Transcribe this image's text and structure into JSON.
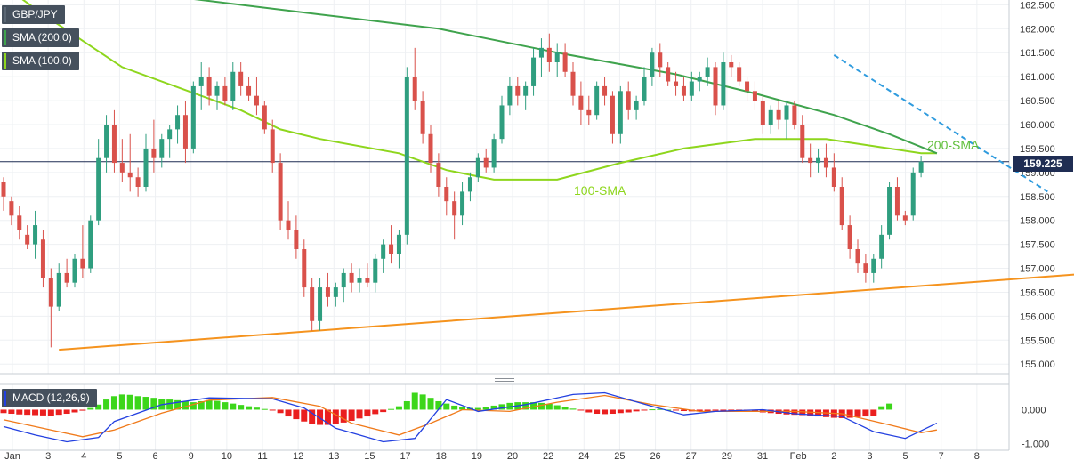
{
  "legend": {
    "symbol": "GBP/JPY",
    "sma200": "SMA (200,0)",
    "sma100": "SMA (100,0)",
    "macd": "MACD (12,26,9)"
  },
  "annotations": {
    "sma200": "200-SMA",
    "sma100": "100-SMA"
  },
  "price_tag": "159.225",
  "colors": {
    "bull": "#2f9e7f",
    "bear": "#d9514b",
    "sma200": "#3fa34d",
    "sma100": "#8ed61d",
    "support": "#f5931e",
    "resistance": "#2f9bde",
    "macd": "#2340e0",
    "signal": "#f07a1a",
    "hist_pos": "#3cd61a",
    "hist_neg": "#ea1f1f",
    "price_line": "#1f2d53"
  },
  "chart_data": {
    "type": "candlestick",
    "y_ticks": [
      "162.500",
      "162.000",
      "161.500",
      "161.000",
      "160.500",
      "160.000",
      "159.500",
      "159.000",
      "158.500",
      "158.000",
      "157.500",
      "157.000",
      "156.500",
      "156.000",
      "155.500",
      "155.000"
    ],
    "x_ticks": [
      "Jan",
      "3",
      "4",
      "5",
      "6",
      "9",
      "10",
      "11",
      "12",
      "13",
      "15",
      "17",
      "18",
      "19",
      "20",
      "22",
      "24",
      "25",
      "26",
      "27",
      "29",
      "31",
      "Feb",
      "2",
      "3",
      "5",
      "7",
      "8"
    ],
    "ylim": [
      154.8,
      162.6
    ],
    "candles": [
      {
        "o": 158.8,
        "h": 158.9,
        "l": 158.2,
        "c": 158.5
      },
      {
        "o": 158.4,
        "h": 158.5,
        "l": 157.9,
        "c": 158.1
      },
      {
        "o": 158.1,
        "h": 158.3,
        "l": 157.6,
        "c": 157.8
      },
      {
        "o": 157.7,
        "h": 157.9,
        "l": 157.4,
        "c": 157.5
      },
      {
        "o": 157.5,
        "h": 158.2,
        "l": 157.2,
        "c": 157.9
      },
      {
        "o": 157.6,
        "h": 157.8,
        "l": 156.6,
        "c": 156.8
      },
      {
        "o": 156.8,
        "h": 157.0,
        "l": 155.35,
        "c": 156.2
      },
      {
        "o": 156.2,
        "h": 157.1,
        "l": 156.1,
        "c": 156.9
      },
      {
        "o": 156.9,
        "h": 157.2,
        "l": 156.6,
        "c": 156.7
      },
      {
        "o": 156.7,
        "h": 157.3,
        "l": 156.6,
        "c": 157.2
      },
      {
        "o": 157.2,
        "h": 157.9,
        "l": 156.8,
        "c": 157.0
      },
      {
        "o": 157.0,
        "h": 158.1,
        "l": 156.9,
        "c": 158.0
      },
      {
        "o": 158.0,
        "h": 159.7,
        "l": 157.9,
        "c": 159.3
      },
      {
        "o": 159.3,
        "h": 160.2,
        "l": 159.0,
        "c": 160.0
      },
      {
        "o": 160.0,
        "h": 160.3,
        "l": 159.0,
        "c": 159.2
      },
      {
        "o": 159.2,
        "h": 159.7,
        "l": 158.8,
        "c": 159.0
      },
      {
        "o": 159.0,
        "h": 159.8,
        "l": 158.6,
        "c": 158.9
      },
      {
        "o": 158.9,
        "h": 159.1,
        "l": 158.5,
        "c": 158.7
      },
      {
        "o": 158.7,
        "h": 159.8,
        "l": 158.6,
        "c": 159.5
      },
      {
        "o": 159.5,
        "h": 160.1,
        "l": 159.0,
        "c": 159.3
      },
      {
        "o": 159.3,
        "h": 159.8,
        "l": 159.1,
        "c": 159.7
      },
      {
        "o": 159.7,
        "h": 160.0,
        "l": 159.3,
        "c": 159.9
      },
      {
        "o": 159.9,
        "h": 160.4,
        "l": 159.6,
        "c": 160.2
      },
      {
        "o": 160.2,
        "h": 160.5,
        "l": 159.2,
        "c": 159.5
      },
      {
        "o": 159.5,
        "h": 160.9,
        "l": 159.4,
        "c": 160.8
      },
      {
        "o": 160.8,
        "h": 161.3,
        "l": 160.3,
        "c": 161.0
      },
      {
        "o": 161.0,
        "h": 161.2,
        "l": 160.4,
        "c": 160.6
      },
      {
        "o": 160.6,
        "h": 160.9,
        "l": 160.3,
        "c": 160.8
      },
      {
        "o": 160.8,
        "h": 161.0,
        "l": 160.4,
        "c": 160.5
      },
      {
        "o": 160.5,
        "h": 161.3,
        "l": 160.3,
        "c": 161.1
      },
      {
        "o": 161.1,
        "h": 161.3,
        "l": 160.6,
        "c": 160.8
      },
      {
        "o": 160.8,
        "h": 161.0,
        "l": 160.5,
        "c": 160.6
      },
      {
        "o": 160.6,
        "h": 161.0,
        "l": 160.2,
        "c": 160.4
      },
      {
        "o": 160.4,
        "h": 160.5,
        "l": 159.8,
        "c": 159.9
      },
      {
        "o": 159.9,
        "h": 160.1,
        "l": 159.0,
        "c": 159.2
      },
      {
        "o": 159.2,
        "h": 159.4,
        "l": 157.8,
        "c": 158.0
      },
      {
        "o": 158.0,
        "h": 158.4,
        "l": 157.6,
        "c": 157.8
      },
      {
        "o": 157.8,
        "h": 158.1,
        "l": 157.2,
        "c": 157.4
      },
      {
        "o": 157.4,
        "h": 157.6,
        "l": 156.4,
        "c": 156.6
      },
      {
        "o": 156.6,
        "h": 156.8,
        "l": 155.7,
        "c": 155.9
      },
      {
        "o": 155.9,
        "h": 156.8,
        "l": 155.7,
        "c": 156.6
      },
      {
        "o": 156.6,
        "h": 156.9,
        "l": 156.2,
        "c": 156.4
      },
      {
        "o": 156.4,
        "h": 156.7,
        "l": 156.2,
        "c": 156.6
      },
      {
        "o": 156.6,
        "h": 157.0,
        "l": 156.3,
        "c": 156.9
      },
      {
        "o": 156.9,
        "h": 157.1,
        "l": 156.5,
        "c": 156.7
      },
      {
        "o": 156.7,
        "h": 157.0,
        "l": 156.5,
        "c": 156.8
      },
      {
        "o": 156.8,
        "h": 157.1,
        "l": 156.6,
        "c": 156.7
      },
      {
        "o": 156.7,
        "h": 157.3,
        "l": 156.5,
        "c": 157.2
      },
      {
        "o": 157.2,
        "h": 157.6,
        "l": 156.9,
        "c": 157.5
      },
      {
        "o": 157.5,
        "h": 157.9,
        "l": 157.1,
        "c": 157.3
      },
      {
        "o": 157.3,
        "h": 157.8,
        "l": 157.0,
        "c": 157.7
      },
      {
        "o": 157.7,
        "h": 161.2,
        "l": 157.5,
        "c": 161.0
      },
      {
        "o": 161.0,
        "h": 161.6,
        "l": 160.3,
        "c": 160.5
      },
      {
        "o": 160.5,
        "h": 160.7,
        "l": 159.6,
        "c": 159.8
      },
      {
        "o": 159.8,
        "h": 160.0,
        "l": 159.0,
        "c": 159.2
      },
      {
        "o": 159.2,
        "h": 159.4,
        "l": 158.5,
        "c": 158.7
      },
      {
        "o": 158.7,
        "h": 158.9,
        "l": 158.1,
        "c": 158.4
      },
      {
        "o": 158.4,
        "h": 158.6,
        "l": 157.6,
        "c": 158.1
      },
      {
        "o": 158.1,
        "h": 158.8,
        "l": 157.9,
        "c": 158.6
      },
      {
        "o": 158.6,
        "h": 159.0,
        "l": 158.4,
        "c": 158.9
      },
      {
        "o": 158.9,
        "h": 159.4,
        "l": 158.8,
        "c": 159.3
      },
      {
        "o": 159.3,
        "h": 159.5,
        "l": 159.0,
        "c": 159.1
      },
      {
        "o": 159.1,
        "h": 159.8,
        "l": 159.0,
        "c": 159.7
      },
      {
        "o": 159.7,
        "h": 160.6,
        "l": 159.6,
        "c": 160.4
      },
      {
        "o": 160.4,
        "h": 161.0,
        "l": 160.2,
        "c": 160.8
      },
      {
        "o": 160.8,
        "h": 161.0,
        "l": 160.4,
        "c": 160.6
      },
      {
        "o": 160.6,
        "h": 160.9,
        "l": 160.3,
        "c": 160.8
      },
      {
        "o": 160.8,
        "h": 161.6,
        "l": 160.6,
        "c": 161.4
      },
      {
        "o": 161.4,
        "h": 161.8,
        "l": 161.0,
        "c": 161.6
      },
      {
        "o": 161.6,
        "h": 161.9,
        "l": 161.1,
        "c": 161.3
      },
      {
        "o": 161.3,
        "h": 161.7,
        "l": 161.0,
        "c": 161.5
      },
      {
        "o": 161.5,
        "h": 161.7,
        "l": 161.0,
        "c": 161.1
      },
      {
        "o": 161.1,
        "h": 161.3,
        "l": 160.4,
        "c": 160.6
      },
      {
        "o": 160.6,
        "h": 160.9,
        "l": 160.0,
        "c": 160.3
      },
      {
        "o": 160.3,
        "h": 160.6,
        "l": 160.0,
        "c": 160.2
      },
      {
        "o": 160.2,
        "h": 160.9,
        "l": 160.1,
        "c": 160.8
      },
      {
        "o": 160.8,
        "h": 161.0,
        "l": 160.4,
        "c": 160.6
      },
      {
        "o": 160.6,
        "h": 160.7,
        "l": 159.6,
        "c": 159.8
      },
      {
        "o": 159.8,
        "h": 160.8,
        "l": 159.6,
        "c": 160.7
      },
      {
        "o": 160.7,
        "h": 160.9,
        "l": 160.1,
        "c": 160.3
      },
      {
        "o": 160.3,
        "h": 160.6,
        "l": 160.1,
        "c": 160.5
      },
      {
        "o": 160.5,
        "h": 161.2,
        "l": 160.4,
        "c": 161.0
      },
      {
        "o": 161.0,
        "h": 161.6,
        "l": 160.8,
        "c": 161.5
      },
      {
        "o": 161.5,
        "h": 161.7,
        "l": 161.0,
        "c": 161.2
      },
      {
        "o": 161.2,
        "h": 161.3,
        "l": 160.8,
        "c": 160.9
      },
      {
        "o": 160.9,
        "h": 161.1,
        "l": 160.6,
        "c": 160.8
      },
      {
        "o": 160.8,
        "h": 161.0,
        "l": 160.5,
        "c": 160.6
      },
      {
        "o": 160.6,
        "h": 161.1,
        "l": 160.5,
        "c": 160.9
      },
      {
        "o": 160.9,
        "h": 161.1,
        "l": 160.7,
        "c": 161.0
      },
      {
        "o": 161.0,
        "h": 161.4,
        "l": 160.8,
        "c": 161.2
      },
      {
        "o": 161.2,
        "h": 161.3,
        "l": 160.2,
        "c": 160.4
      },
      {
        "o": 160.4,
        "h": 161.5,
        "l": 160.3,
        "c": 161.3
      },
      {
        "o": 161.3,
        "h": 161.45,
        "l": 161.0,
        "c": 161.2
      },
      {
        "o": 161.2,
        "h": 161.3,
        "l": 160.8,
        "c": 160.9
      },
      {
        "o": 160.9,
        "h": 161.0,
        "l": 160.5,
        "c": 160.7
      },
      {
        "o": 160.7,
        "h": 160.9,
        "l": 160.3,
        "c": 160.5
      },
      {
        "o": 160.5,
        "h": 160.6,
        "l": 159.8,
        "c": 160.0
      },
      {
        "o": 160.0,
        "h": 160.4,
        "l": 159.8,
        "c": 160.3
      },
      {
        "o": 160.3,
        "h": 160.5,
        "l": 159.9,
        "c": 160.1
      },
      {
        "o": 160.1,
        "h": 160.5,
        "l": 159.7,
        "c": 160.4
      },
      {
        "o": 160.4,
        "h": 160.5,
        "l": 159.9,
        "c": 160.0
      },
      {
        "o": 160.0,
        "h": 160.2,
        "l": 159.2,
        "c": 159.3
      },
      {
        "o": 159.3,
        "h": 159.6,
        "l": 158.9,
        "c": 159.2
      },
      {
        "o": 159.2,
        "h": 159.5,
        "l": 159.0,
        "c": 159.3
      },
      {
        "o": 159.3,
        "h": 159.6,
        "l": 158.9,
        "c": 159.1
      },
      {
        "o": 159.1,
        "h": 159.4,
        "l": 158.6,
        "c": 158.7
      },
      {
        "o": 158.7,
        "h": 158.9,
        "l": 157.8,
        "c": 157.9
      },
      {
        "o": 157.9,
        "h": 158.1,
        "l": 157.2,
        "c": 157.4
      },
      {
        "o": 157.4,
        "h": 157.6,
        "l": 156.9,
        "c": 157.1
      },
      {
        "o": 157.1,
        "h": 157.3,
        "l": 156.7,
        "c": 156.9
      },
      {
        "o": 156.9,
        "h": 157.3,
        "l": 156.7,
        "c": 157.2
      },
      {
        "o": 157.2,
        "h": 157.9,
        "l": 157.0,
        "c": 157.7
      },
      {
        "o": 157.7,
        "h": 158.8,
        "l": 157.6,
        "c": 158.7
      },
      {
        "o": 158.7,
        "h": 158.9,
        "l": 158.0,
        "c": 158.1
      },
      {
        "o": 158.1,
        "h": 158.2,
        "l": 157.9,
        "c": 158.0
      },
      {
        "o": 158.1,
        "h": 159.1,
        "l": 158.0,
        "c": 159.0
      },
      {
        "o": 159.0,
        "h": 159.35,
        "l": 158.9,
        "c": 159.225
      }
    ],
    "sma100": [
      [
        0,
        162.9
      ],
      [
        5,
        162.3
      ],
      [
        15,
        161.2
      ],
      [
        25,
        160.6
      ],
      [
        30,
        160.3
      ],
      [
        35,
        159.9
      ],
      [
        40,
        159.7
      ],
      [
        50,
        159.4
      ],
      [
        56,
        159.05
      ],
      [
        62,
        158.85
      ],
      [
        70,
        158.85
      ],
      [
        78,
        159.2
      ],
      [
        86,
        159.5
      ],
      [
        95,
        159.7
      ],
      [
        104,
        159.7
      ],
      [
        110,
        159.55
      ],
      [
        116,
        159.4
      ],
      [
        118,
        159.4
      ]
    ],
    "sma200": [
      [
        8,
        163.0
      ],
      [
        20,
        162.7
      ],
      [
        40,
        162.3
      ],
      [
        55,
        162.0
      ],
      [
        70,
        161.5
      ],
      [
        85,
        161.05
      ],
      [
        95,
        160.65
      ],
      [
        105,
        160.2
      ],
      [
        112,
        159.8
      ],
      [
        118,
        159.4
      ]
    ],
    "support": [
      [
        7,
        155.3
      ],
      [
        138,
        156.9
      ]
    ],
    "resistance": [
      [
        105,
        161.45
      ],
      [
        132,
        158.6
      ]
    ],
    "macd_hist": [
      -0.1,
      -0.12,
      -0.14,
      -0.15,
      -0.16,
      -0.17,
      -0.18,
      -0.15,
      -0.12,
      -0.08,
      -0.03,
      0.05,
      0.15,
      0.3,
      0.4,
      0.45,
      0.44,
      0.4,
      0.38,
      0.35,
      0.32,
      0.3,
      0.28,
      0.25,
      0.22,
      0.25,
      0.28,
      0.26,
      0.22,
      0.18,
      0.14,
      0.1,
      0.06,
      0.02,
      -0.02,
      -0.1,
      -0.2,
      -0.28,
      -0.35,
      -0.42,
      -0.45,
      -0.45,
      -0.43,
      -0.38,
      -0.33,
      -0.26,
      -0.2,
      -0.13,
      -0.07,
      0.02,
      0.1,
      0.25,
      0.5,
      0.45,
      0.35,
      0.25,
      0.18,
      0.12,
      0.08,
      0.05,
      0.05,
      0.08,
      0.12,
      0.16,
      0.2,
      0.22,
      0.22,
      0.22,
      0.2,
      0.17,
      0.13,
      0.08,
      0.03,
      -0.02,
      -0.08,
      -0.12,
      -0.13,
      -0.12,
      -0.1,
      -0.08,
      -0.05,
      -0.02,
      0.01,
      0.02,
      0.0,
      -0.02,
      -0.04,
      -0.05,
      -0.05,
      -0.04,
      -0.03,
      -0.03,
      -0.02,
      -0.02,
      -0.03,
      -0.05,
      -0.08,
      -0.1,
      -0.12,
      -0.14,
      -0.15,
      -0.16,
      -0.18,
      -0.2,
      -0.22,
      -0.24,
      -0.25,
      -0.24,
      -0.22,
      -0.2,
      -0.18,
      0.1,
      0.18
    ],
    "macd_line": [
      [
        0,
        -0.5
      ],
      [
        4,
        -0.75
      ],
      [
        8,
        -0.95
      ],
      [
        12,
        -0.82
      ],
      [
        14,
        -0.35
      ],
      [
        20,
        0.15
      ],
      [
        26,
        0.35
      ],
      [
        34,
        0.32
      ],
      [
        38,
        0.05
      ],
      [
        42,
        -0.55
      ],
      [
        48,
        -0.95
      ],
      [
        52,
        -0.85
      ],
      [
        56,
        0.3
      ],
      [
        60,
        -0.05
      ],
      [
        66,
        0.15
      ],
      [
        72,
        0.45
      ],
      [
        76,
        0.5
      ],
      [
        82,
        0.1
      ],
      [
        86,
        -0.15
      ],
      [
        90,
        -0.05
      ],
      [
        96,
        0.0
      ],
      [
        100,
        -0.12
      ],
      [
        106,
        -0.2
      ],
      [
        110,
        -0.65
      ],
      [
        114,
        -0.85
      ],
      [
        118,
        -0.4
      ]
    ],
    "signal_line": [
      [
        0,
        -0.3
      ],
      [
        6,
        -0.6
      ],
      [
        10,
        -0.8
      ],
      [
        14,
        -0.6
      ],
      [
        20,
        -0.1
      ],
      [
        26,
        0.28
      ],
      [
        34,
        0.36
      ],
      [
        40,
        0.1
      ],
      [
        44,
        -0.4
      ],
      [
        50,
        -0.75
      ],
      [
        54,
        -0.4
      ],
      [
        58,
        0.0
      ],
      [
        64,
        -0.05
      ],
      [
        70,
        0.22
      ],
      [
        76,
        0.42
      ],
      [
        82,
        0.15
      ],
      [
        88,
        -0.05
      ],
      [
        94,
        -0.05
      ],
      [
        100,
        -0.05
      ],
      [
        106,
        -0.12
      ],
      [
        112,
        -0.45
      ],
      [
        116,
        -0.68
      ],
      [
        118,
        -0.6
      ]
    ],
    "macd_ticks": [
      "0.000",
      "-1.000"
    ],
    "macd_ylim": [
      -1.2,
      0.75
    ]
  }
}
